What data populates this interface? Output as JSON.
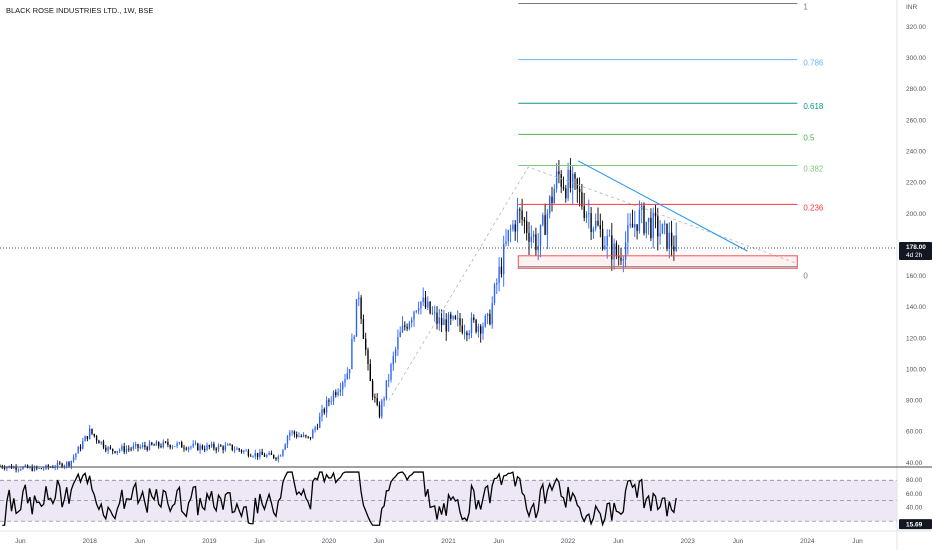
{
  "header": {
    "title": "BLACK ROSE INDUSTRIES LTD., 1W, BSE"
  },
  "colors": {
    "up": "#2962ff",
    "down": "#000000",
    "rsi_line": "#000000",
    "rsi_band": "#ede7f6",
    "trendline": "#2196f3",
    "support_box": "#ef5350",
    "fib_1": "#787b86",
    "fib_0786": "#64b5f6",
    "fib_0618": "#089981",
    "fib_05": "#4caf50",
    "fib_0382": "#81c784",
    "fib_0236": "#f23645",
    "fib_0": "#787b86"
  },
  "chart_data": [
    {
      "type": "candlestick",
      "name": "price",
      "ylabel": "INR",
      "y_ticks": [
        40,
        60,
        80,
        100,
        120,
        140,
        160,
        180,
        200,
        220,
        240,
        260,
        280,
        300,
        320
      ],
      "y_tick_labels": [
        "40.00",
        "60.00",
        "80.00",
        "100.00",
        "120.00",
        "140.00",
        "160.00",
        "180.00",
        "200.00",
        "220.00",
        "240.00",
        "260.00",
        "280.00",
        "300.00",
        "320.00"
      ],
      "ylim": [
        38,
        336
      ],
      "x_ticks": [
        "Jun",
        "2018",
        "Jun",
        "2019",
        "Jun",
        "2020",
        "Jun",
        "2021",
        "Jun",
        "2022",
        "Jun",
        "2023",
        "Jun",
        "2024",
        "Jun"
      ],
      "xlim": [
        "2017-04",
        "2024-10"
      ],
      "last_price": "178.00",
      "countdown": "4d 2h",
      "path": [
        [
          "2017-04",
          38
        ],
        [
          "2017-08",
          36
        ],
        [
          "2017-11",
          40
        ],
        [
          "2018-01",
          60
        ],
        [
          "2018-03",
          48
        ],
        [
          "2018-06",
          50
        ],
        [
          "2018-09",
          52
        ],
        [
          "2018-12",
          50
        ],
        [
          "2019-03",
          50
        ],
        [
          "2019-06",
          45
        ],
        [
          "2019-08",
          44
        ],
        [
          "2019-09",
          60
        ],
        [
          "2019-11",
          55
        ],
        [
          "2020-01",
          80
        ],
        [
          "2020-03",
          100
        ],
        [
          "2020-04",
          150
        ],
        [
          "2020-05",
          95
        ],
        [
          "2020-06",
          70
        ],
        [
          "2020-08",
          120
        ],
        [
          "2020-10",
          145
        ],
        [
          "2020-12",
          130
        ],
        [
          "2021-03",
          128
        ],
        [
          "2021-05",
          130
        ],
        [
          "2021-06",
          160
        ],
        [
          "2021-07",
          185
        ],
        [
          "2021-08",
          200
        ],
        [
          "2021-10",
          180
        ],
        [
          "2021-12",
          225
        ],
        [
          "2022-02",
          212
        ],
        [
          "2022-04",
          190
        ],
        [
          "2022-06",
          172
        ],
        [
          "2022-08",
          198
        ],
        [
          "2022-10",
          190
        ],
        [
          "2022-12",
          178
        ]
      ],
      "fib_levels": [
        {
          "label": "1",
          "value": 335,
          "color": "#787b86"
        },
        {
          "label": "0.786",
          "value": 299,
          "color": "#64b5f6"
        },
        {
          "label": "0.618",
          "value": 271,
          "color": "#089981"
        },
        {
          "label": "0.5",
          "value": 251,
          "color": "#4caf50"
        },
        {
          "label": "0.382",
          "value": 231,
          "color": "#81c784"
        },
        {
          "label": "0.236",
          "value": 206,
          "color": "#f23645"
        },
        {
          "label": "0",
          "value": 166,
          "color": "#787b86"
        }
      ],
      "fib_range": [
        "2021-08",
        "2023-12"
      ],
      "support_box": {
        "from": "2021-08",
        "to": "2023-12",
        "low": 165,
        "high": 173
      },
      "descending_trendline": [
        [
          "2022-02",
          234
        ],
        [
          "2023-07",
          176
        ]
      ],
      "fib_anchor_line": [
        [
          "2020-07",
          80
        ],
        [
          "2021-09",
          230
        ],
        [
          "2023-12",
          168
        ]
      ]
    },
    {
      "type": "line",
      "name": "rsi",
      "y_ticks": [
        20,
        40,
        60,
        80
      ],
      "y_tick_labels": [
        "20.00",
        "40.00",
        "60.00",
        "80.00"
      ],
      "ylim": [
        10,
        95
      ],
      "band": [
        20,
        80
      ],
      "midline": 50,
      "last_value": "15.69",
      "xlim": [
        "2017-04",
        "2024-10"
      ]
    }
  ]
}
